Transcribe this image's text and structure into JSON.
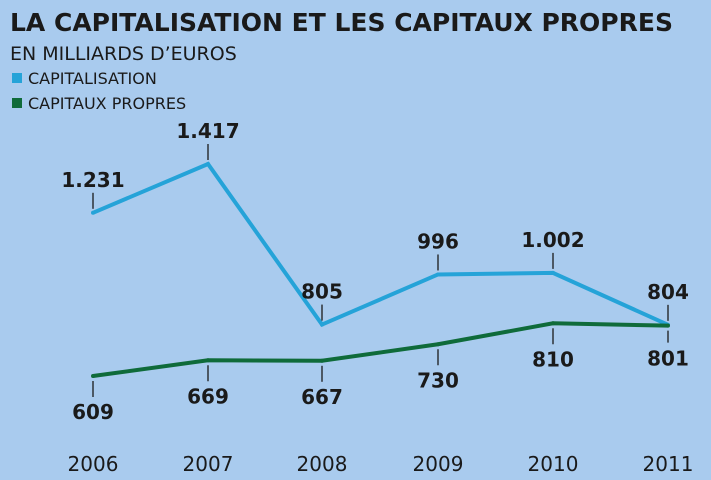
{
  "chart_data": {
    "type": "line",
    "title": "LA CAPITALISATION ET LES CAPITAUX PROPRES",
    "subtitle": "EN MILLIARDS D’EUROS",
    "categories": [
      "2006",
      "2007",
      "2008",
      "2009",
      "2010",
      "2011"
    ],
    "series": [
      {
        "name": "CAPITALISATION",
        "color": "#25a3d8",
        "values": [
          1231,
          1417,
          805,
          996,
          1002,
          804
        ],
        "labels": [
          "1.231",
          "1.417",
          "805",
          "996",
          "1.002",
          "804"
        ]
      },
      {
        "name": "CAPITAUX PROPRES",
        "color": "#0f6b3a",
        "values": [
          609,
          669,
          667,
          730,
          810,
          801
        ],
        "labels": [
          "609",
          "669",
          "667",
          "730",
          "810",
          "801"
        ]
      }
    ],
    "legend_position": "top-left",
    "grid": false,
    "xlabel": "",
    "ylabel": ""
  }
}
